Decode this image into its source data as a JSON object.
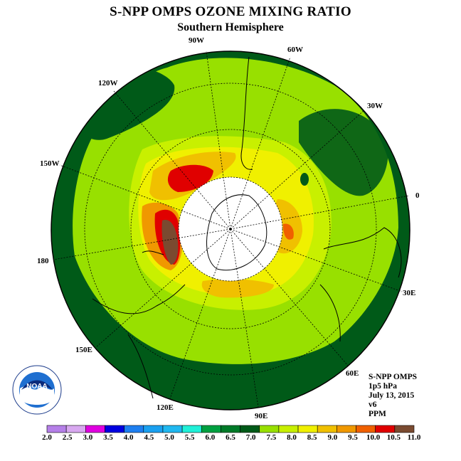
{
  "title": "S-NPP OMPS OZONE MIXING RATIO",
  "subtitle": "Southern Hemisphere",
  "longitude_labels": [
    {
      "text": "90W",
      "key": "90w"
    },
    {
      "text": "60W",
      "key": "60w"
    },
    {
      "text": "30W",
      "key": "30w"
    },
    {
      "text": "0",
      "key": "0"
    },
    {
      "text": "30E",
      "key": "30e"
    },
    {
      "text": "60E",
      "key": "60e"
    },
    {
      "text": "90E",
      "key": "90e"
    },
    {
      "text": "120E",
      "key": "120e"
    },
    {
      "text": "150E",
      "key": "150e"
    },
    {
      "text": "180",
      "key": "180"
    },
    {
      "text": "150W",
      "key": "150w"
    },
    {
      "text": "120W",
      "key": "120w"
    }
  ],
  "info": {
    "instrument": "S-NPP OMPS",
    "level": "1p5 hPa",
    "date": "July 13, 2015",
    "version": "v6",
    "units": "PPM"
  },
  "colorbar": {
    "ticks": [
      "2.0",
      "2.5",
      "3.0",
      "3.5",
      "4.0",
      "4.5",
      "5.0",
      "5.5",
      "6.0",
      "6.5",
      "7.0",
      "7.5",
      "8.0",
      "8.5",
      "9.0",
      "9.5",
      "10.0",
      "10.5",
      "11.0"
    ],
    "colors": [
      "#b57fe8",
      "#d8a8f0",
      "#e000e0",
      "#0000e0",
      "#1e7ff0",
      "#1aa0f0",
      "#20b8f0",
      "#20f0d8",
      "#00a040",
      "#007a28",
      "#005a18",
      "#98e000",
      "#c8f000",
      "#f0f000",
      "#f0c000",
      "#f09800",
      "#f06000",
      "#e00000",
      "#7a4a30"
    ]
  },
  "logo": {
    "text": "NOAA"
  }
}
